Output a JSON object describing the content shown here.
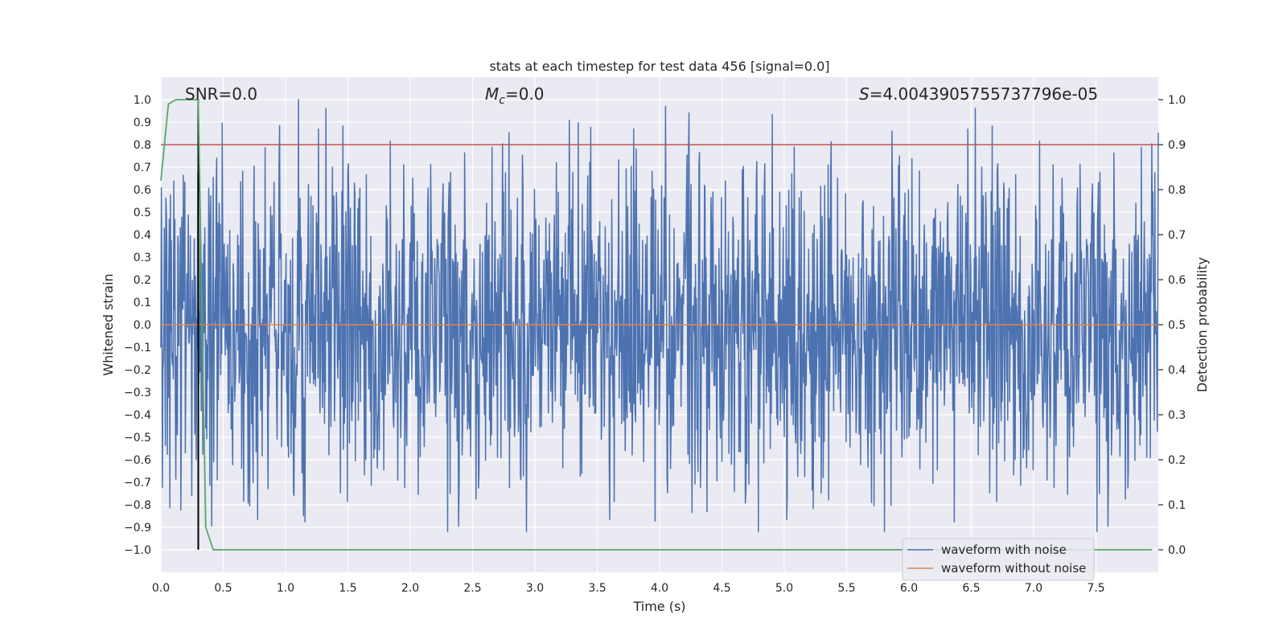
{
  "chart_data": {
    "type": "line",
    "title": "stats at each timestep for test data 456 [signal=0.0]",
    "xlabel": "Time (s)",
    "ylabel": "Whitened strain",
    "ylabel_right": "Detection probability",
    "xlim": [
      0.0,
      8.0
    ],
    "ylim": [
      -1.1,
      1.1
    ],
    "ylim_right": [
      -0.05,
      1.05
    ],
    "xticks": [
      0.0,
      0.5,
      1.0,
      1.5,
      2.0,
      2.5,
      3.0,
      3.5,
      4.0,
      4.5,
      5.0,
      5.5,
      6.0,
      6.5,
      7.0,
      7.5
    ],
    "xtick_labels": [
      "0.0",
      "0.5",
      "1.0",
      "1.5",
      "2.0",
      "2.5",
      "3.0",
      "3.5",
      "4.0",
      "4.5",
      "5.0",
      "5.5",
      "6.0",
      "6.5",
      "7.0",
      "7.5"
    ],
    "yticks": [
      1.0,
      0.9,
      0.8,
      0.7,
      0.6,
      0.5,
      0.4,
      0.3,
      0.2,
      0.1,
      0.0,
      -0.1,
      -0.2,
      -0.3,
      -0.4,
      -0.5,
      -0.6,
      -0.7,
      -0.8,
      -0.9,
      -1.0
    ],
    "ytick_labels": [
      "1.0",
      "0.9",
      "0.8",
      "0.7",
      "0.6",
      "0.5",
      "0.4",
      "0.3",
      "0.2",
      "0.1",
      "0.0",
      "−0.1",
      "−0.2",
      "−0.3",
      "−0.4",
      "−0.5",
      "−0.6",
      "−0.7",
      "−0.8",
      "−0.9",
      "−1.0"
    ],
    "yticks_right": [
      1.0,
      0.9,
      0.8,
      0.7,
      0.6,
      0.5,
      0.4,
      0.3,
      0.2,
      0.1,
      0.0
    ],
    "ytick_labels_right": [
      "1.0",
      "0.9",
      "0.8",
      "0.7",
      "0.6",
      "0.5",
      "0.4",
      "0.3",
      "0.2",
      "0.1",
      "0.0"
    ],
    "annotations": {
      "snr": "SNR=0.0",
      "mc_symbol": "M",
      "mc_sub": "c",
      "mc_value": "=0.0",
      "s_symbol": "S",
      "s_value": "=4.0043905755737796e-05"
    },
    "series": [
      {
        "name": "waveform with noise",
        "color": "#4c72b0",
        "axis": "left",
        "kind": "noise",
        "amplitude_typical": [
          -0.6,
          0.6
        ],
        "peak_max": 1.0,
        "peak_min": -0.92,
        "t_start": 0.0,
        "t_end": 8.0
      },
      {
        "name": "waveform without noise",
        "color": "#dd8452",
        "axis": "left",
        "kind": "flat",
        "value": 0.0
      },
      {
        "name": "detection probability",
        "color": "#55a868",
        "axis": "right",
        "x": [
          0.0,
          0.06,
          0.12,
          0.18,
          0.24,
          0.3,
          0.36,
          0.42,
          0.48,
          1.0,
          2.0,
          3.0,
          4.0,
          5.0,
          6.0,
          7.0,
          7.95
        ],
        "y": [
          0.82,
          0.99,
          1.0,
          1.0,
          1.0,
          1.0,
          0.05,
          0.0,
          0.0,
          0.0,
          0.0,
          0.0,
          0.0,
          0.0,
          0.0,
          0.0,
          0.0
        ]
      },
      {
        "name": "threshold",
        "color": "#c44e52",
        "axis": "right",
        "kind": "hline",
        "value": 0.9
      },
      {
        "name": "detection time",
        "color": "#000000",
        "axis": "right",
        "kind": "vline",
        "x": 0.3,
        "y_range": [
          0.0,
          1.0
        ]
      }
    ],
    "legend": {
      "placement": "lower-right",
      "entries": [
        {
          "label": "waveform with noise",
          "color": "#4c72b0"
        },
        {
          "label": "waveform without noise",
          "color": "#dd8452"
        }
      ]
    },
    "grid": true,
    "background": "#eaeaf2"
  }
}
